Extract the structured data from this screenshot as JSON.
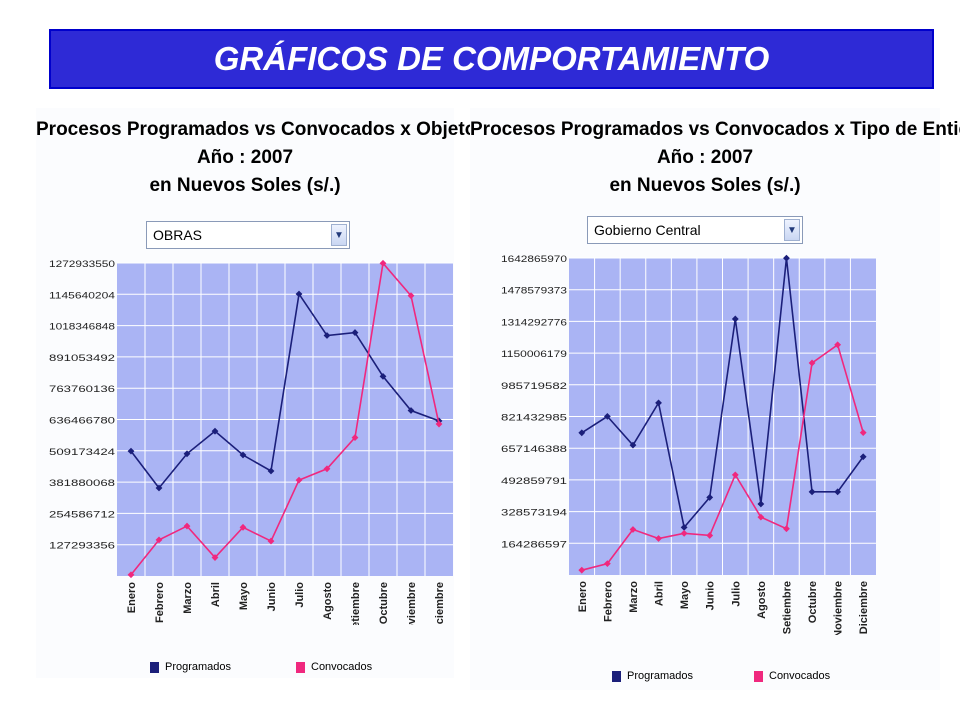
{
  "banner": {
    "title": "GRÁFICOS DE COMPORTAMIENTO",
    "bg_color": "#2e2ad6",
    "text_color": "#ffffff"
  },
  "colors": {
    "plot_bg": "#aab4f4",
    "grid": "#ffffff",
    "programados": "#1b1f7a",
    "convocados": "#f0287e"
  },
  "chart_data": [
    {
      "type": "line",
      "title": [
        "Procesos Programados vs Convocados x Objeto",
        "Año : 2007",
        "en Nuevos Soles (s/.)"
      ],
      "filter": {
        "selected": "OBRAS"
      },
      "categories": [
        "Enero",
        "Febrero",
        "Marzo",
        "Abril",
        "Mayo",
        "Junio",
        "Julio",
        "Agosto",
        "Setiembre",
        "Octubre",
        "Noviembre",
        "Diciembre"
      ],
      "y_ticks": [
        "1272933550",
        "1145640204",
        "1018346848",
        "891053492",
        "763760136",
        "636466780",
        "509173424",
        "381880068",
        "254586712",
        "127293356"
      ],
      "ylim": [
        0,
        1272933560
      ],
      "grid": true,
      "legend_position": "bottom",
      "series": [
        {
          "name": "Programados",
          "values": [
            508000000,
            358000000,
            497000000,
            589000000,
            492000000,
            427000000,
            1147000000,
            978000000,
            990000000,
            812000000,
            673000000,
            631000000
          ]
        },
        {
          "name": "Convocados",
          "values": [
            5000000,
            147000000,
            203000000,
            75000000,
            198000000,
            142000000,
            390000000,
            436000000,
            563000000,
            1272000000,
            1140000000,
            618000000
          ]
        }
      ]
    },
    {
      "type": "line",
      "title": [
        "Procesos Programados vs Convocados x Tipo de Entidad",
        "Año : 2007",
        "en Nuevos Soles (s/.)"
      ],
      "filter": {
        "selected": "Gobierno Central"
      },
      "categories": [
        "Enero",
        "Febrero",
        "Marzo",
        "Abril",
        "Mayo",
        "Junio",
        "Julio",
        "Agosto",
        "Setiembre",
        "Octubre",
        "Noviembre",
        "Diciembre"
      ],
      "y_ticks": [
        "1642865970",
        "1478579373",
        "1314292776",
        "1150006179",
        "985719582",
        "821432985",
        "657146388",
        "492859791",
        "328573194",
        "164286597"
      ],
      "ylim": [
        0,
        1642865970
      ],
      "grid": true,
      "legend_position": "bottom",
      "series": [
        {
          "name": "Programados",
          "values": [
            737000000,
            822000000,
            673000000,
            892000000,
            247000000,
            402000000,
            1327000000,
            368000000,
            1642000000,
            431000000,
            431000000,
            613000000
          ]
        },
        {
          "name": "Convocados",
          "values": [
            25000000,
            59000000,
            236000000,
            189000000,
            216000000,
            205000000,
            519000000,
            300000000,
            240000000,
            1099000000,
            1193000000,
            738000000
          ]
        }
      ]
    }
  ]
}
